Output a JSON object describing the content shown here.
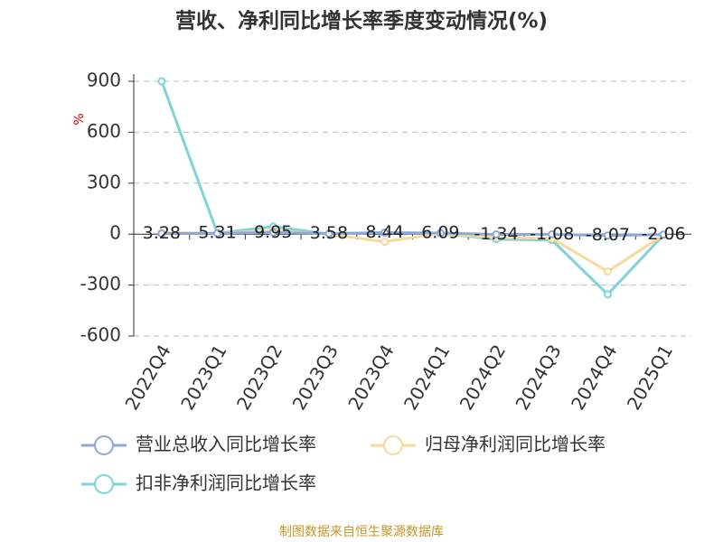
{
  "chart_data": {
    "type": "line",
    "title": "营收、净利同比增长率季度变动情况(%)",
    "y_label": "%",
    "categories": [
      "2022Q4",
      "2023Q1",
      "2023Q2",
      "2023Q3",
      "2023Q4",
      "2024Q1",
      "2024Q2",
      "2024Q3",
      "2024Q4",
      "2025Q1"
    ],
    "series": [
      {
        "name": "营业总收入同比增长率",
        "color": "#8fa8d8",
        "values": [
          3.28,
          5.31,
          9.95,
          3.58,
          8.44,
          6.09,
          -1.34,
          -1.08,
          -8.07,
          -2.06
        ]
      },
      {
        "name": "归母净利润同比增长率",
        "color": "#f9d99a",
        "values": [
          10,
          5,
          20,
          0,
          -45,
          5,
          -20,
          -25,
          -220,
          -5
        ]
      },
      {
        "name": "扣非净利润同比增长率",
        "color": "#7fd3d8",
        "values": [
          900,
          5,
          45,
          0,
          10,
          5,
          -30,
          -35,
          -355,
          -5
        ]
      }
    ],
    "ylim": [
      -600,
      900
    ],
    "yticks": [
      -600,
      -300,
      0,
      300,
      600,
      900
    ],
    "grid": true,
    "source": "制图数据来自恒生聚源数据库"
  }
}
